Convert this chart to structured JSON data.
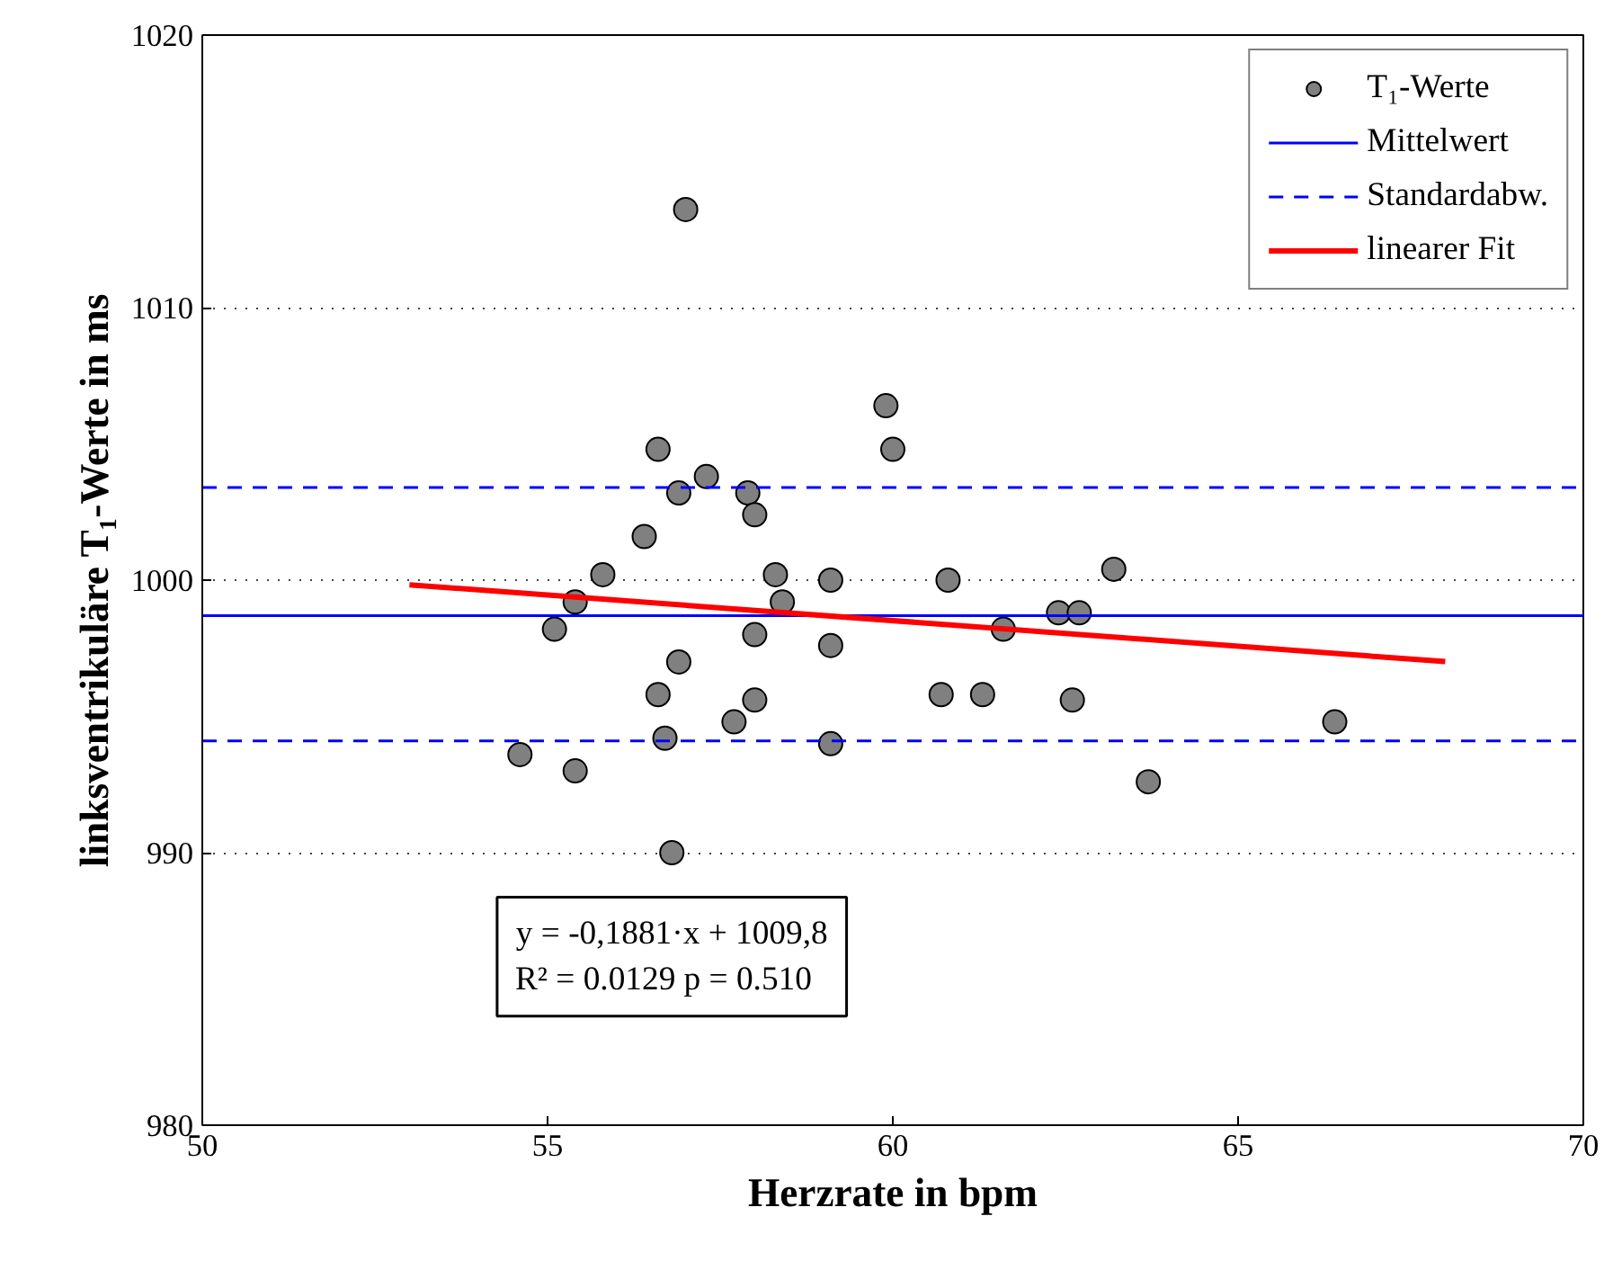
{
  "chart_data": {
    "type": "scatter",
    "xlabel": "Herzrate in bpm",
    "ylabel": "linksventrikuläre T₁-Werte in ms",
    "xlim": [
      50,
      70
    ],
    "ylim": [
      980,
      1020
    ],
    "xticks": [
      50,
      55,
      60,
      65,
      70
    ],
    "yticks": [
      980,
      990,
      1000,
      1010,
      1020
    ],
    "grid": "y",
    "legend": "top right",
    "series": [
      {
        "name": "T₁-Werte",
        "marker": "circle",
        "color": "#808080",
        "x": [
          54.6,
          55.1,
          55.4,
          55.4,
          55.8,
          56.4,
          56.6,
          56.6,
          56.7,
          56.8,
          56.9,
          56.9,
          57.0,
          57.3,
          57.7,
          57.9,
          58.0,
          58.0,
          58.0,
          58.3,
          58.4,
          59.1,
          59.1,
          59.1,
          59.9,
          60.0,
          60.7,
          60.8,
          61.3,
          61.6,
          62.4,
          62.6,
          62.7,
          63.2,
          63.7,
          66.4
        ],
        "values": [
          993.6,
          998.2,
          999.2,
          993.0,
          1000.2,
          1001.6,
          1004.8,
          995.8,
          994.2,
          990.0,
          1003.2,
          997.0,
          1013.6,
          1003.8,
          994.8,
          1003.2,
          1002.4,
          998.0,
          995.6,
          1000.2,
          999.2,
          1000.0,
          997.6,
          994.0,
          1006.4,
          1004.8,
          995.8,
          1000.0,
          995.8,
          998.2,
          998.8,
          995.6,
          998.8,
          1000.4,
          992.6,
          994.8
        ]
      },
      {
        "name": "Mittelwert",
        "type": "line",
        "color": "#0000ff",
        "line_style": "solid",
        "x": [
          50,
          70
        ],
        "values": [
          998.7,
          998.7
        ]
      },
      {
        "name": "Standardabw.",
        "type": "line",
        "color": "#0000ff",
        "line_style": "dashed",
        "x": [
          50,
          70
        ],
        "values": [
          1003.4,
          1003.4
        ]
      },
      {
        "type": "line",
        "color": "#0000ff",
        "line_style": "dashed",
        "x": [
          50,
          70
        ],
        "values": [
          994.1,
          994.1
        ]
      },
      {
        "name": "linearer Fit",
        "type": "line",
        "color": "#ff0000",
        "line_style": "solid",
        "x": [
          53,
          68
        ],
        "values": [
          999.83,
          997.01
        ]
      }
    ],
    "annotations": [
      "y = -0,1881·x + 1009,8",
      "R² = 0.0129   p = 0.510"
    ]
  }
}
